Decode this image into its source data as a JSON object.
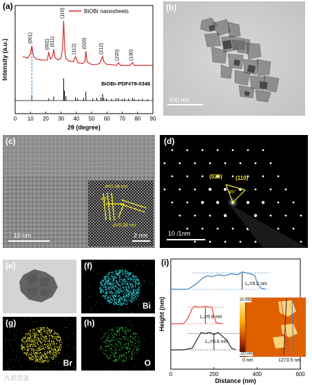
{
  "panels": {
    "a": {
      "label": "(a)"
    },
    "b": {
      "label": "(b)",
      "scalebar": "500 nm"
    },
    "c": {
      "label": "(c)",
      "scalebar_main": "10 nm",
      "scalebar_inset": "2 nm",
      "d1": "d=0.28 nm",
      "d2": "d=0.28 nm",
      "angle": "45°"
    },
    "d": {
      "label": "(d)",
      "scalebar": "10 /1nm",
      "spot1": "(020)",
      "spot2": "(110)",
      "angle": "45°"
    },
    "e": {
      "label": "(e)"
    },
    "f": {
      "label": "(f)",
      "element": "Bi"
    },
    "g": {
      "label": "(g)",
      "element": "Br"
    },
    "h": {
      "label": "(h)",
      "element": "O"
    },
    "i": {
      "label": "(i)",
      "L1": "L₁=5.2 nm",
      "L2": "L₂=5.8 nm",
      "L3": "L₃=5.6 nm",
      "inset_top": "20 nm",
      "inset_bottom": "-20 nm",
      "inset_x0": "0 nm",
      "inset_x1": "1273.5 nm"
    }
  },
  "watermark": "九熙资源",
  "colors": {
    "xrd": "#d62728",
    "ref": "#000000",
    "dashed": "#1f77b4",
    "h1": "#3a7ebf",
    "h2": "#e8453c",
    "h3": "#222222",
    "bi": "#2ed8e0",
    "br": "#e8e030",
    "o": "#30c040"
  },
  "chart_data": [
    {
      "type": "line",
      "title": "",
      "xlabel": "2θ (degree)",
      "ylabel": "Intensity (a.u.)",
      "xlim": [
        0,
        90
      ],
      "xticks": [
        "0",
        "10",
        "20",
        "30",
        "40",
        "50",
        "60",
        "70",
        "80",
        "90"
      ],
      "legend": "BiOBr nanosheets",
      "reference_label": "BiOBr-PDF#78-0348",
      "peak_labels": [
        {
          "x": 10.9,
          "label": "(001)"
        },
        {
          "x": 21.9,
          "label": "(002)"
        },
        {
          "x": 25.2,
          "label": "(011)"
        },
        {
          "x": 31.7,
          "label": "(110)"
        },
        {
          "x": 39.4,
          "label": "(112)"
        },
        {
          "x": 46.2,
          "label": "(020)"
        },
        {
          "x": 57.1,
          "label": "(212)"
        },
        {
          "x": 67.4,
          "label": "(220)"
        },
        {
          "x": 76.7,
          "label": "(130)"
        }
      ],
      "series": [
        {
          "name": "BiOBr nanosheets",
          "x": [
            5,
            8,
            10,
            10.9,
            12,
            14,
            18,
            21,
            21.9,
            23,
            24.5,
            25.2,
            26,
            28,
            30,
            31,
            31.7,
            32.5,
            33,
            35,
            38,
            39.4,
            41,
            44,
            45.5,
            46.2,
            47,
            50,
            53,
            55,
            56,
            57.1,
            58,
            60,
            63,
            66,
            67.4,
            69,
            72,
            75,
            76.7,
            78,
            82,
            86,
            90
          ],
          "y": [
            0.6,
            0.58,
            0.63,
            0.72,
            0.6,
            0.57,
            0.56,
            0.56,
            0.65,
            0.57,
            0.6,
            0.68,
            0.59,
            0.56,
            0.58,
            0.7,
            1.0,
            0.66,
            0.58,
            0.55,
            0.54,
            0.6,
            0.53,
            0.52,
            0.54,
            0.66,
            0.54,
            0.51,
            0.51,
            0.52,
            0.55,
            0.6,
            0.54,
            0.51,
            0.51,
            0.5,
            0.53,
            0.5,
            0.5,
            0.5,
            0.53,
            0.5,
            0.5,
            0.5,
            0.5
          ]
        }
      ],
      "reference_bars": {
        "x": [
          10.9,
          21.9,
          25.2,
          31.7,
          32.2,
          33.2,
          39.4,
          40.8,
          44.7,
          46.2,
          50.7,
          53.3,
          56.1,
          57.1,
          57.9,
          59.6,
          63.0,
          65.8,
          67.4,
          69.8,
          71.5,
          74.1,
          76.7,
          77.9,
          80.6,
          83.2,
          86.5
        ],
        "y": [
          0.22,
          0.1,
          0.18,
          1.0,
          0.45,
          0.2,
          0.15,
          0.1,
          0.12,
          0.4,
          0.1,
          0.12,
          0.14,
          0.3,
          0.12,
          0.1,
          0.08,
          0.1,
          0.12,
          0.08,
          0.1,
          0.08,
          0.12,
          0.08,
          0.06,
          0.08,
          0.06
        ]
      }
    },
    {
      "type": "line",
      "title": "",
      "xlabel": "Distance (nm)",
      "ylabel": "Height (nm)",
      "xlim": [
        0,
        600
      ],
      "xticks": [
        "0",
        "200",
        "400",
        "600"
      ],
      "series": [
        {
          "name": "L1",
          "x": [
            0,
            80,
            120,
            150,
            170,
            190,
            220,
            250,
            280,
            310,
            330,
            350,
            370,
            390,
            400,
            420,
            440
          ],
          "y": [
            0.0,
            0.0,
            0.3,
            0.6,
            0.7,
            0.65,
            0.75,
            0.7,
            0.8,
            0.75,
            0.9,
            0.85,
            0.8,
            0.7,
            0.3,
            0.05,
            0.0
          ]
        },
        {
          "name": "L2",
          "x": [
            0,
            60,
            80,
            100,
            110,
            130,
            160,
            190,
            200,
            210,
            240
          ],
          "y": [
            0.0,
            0.0,
            0.3,
            0.8,
            0.9,
            0.85,
            0.9,
            0.85,
            0.4,
            0.05,
            0.0
          ]
        },
        {
          "name": "L3",
          "x": [
            0,
            60,
            100,
            120,
            140,
            160,
            180,
            200,
            220,
            240,
            260,
            280,
            300
          ],
          "y": [
            0.0,
            0.0,
            0.1,
            0.5,
            0.9,
            0.85,
            0.9,
            0.8,
            0.9,
            0.7,
            0.5,
            0.1,
            0.0
          ]
        }
      ]
    }
  ]
}
